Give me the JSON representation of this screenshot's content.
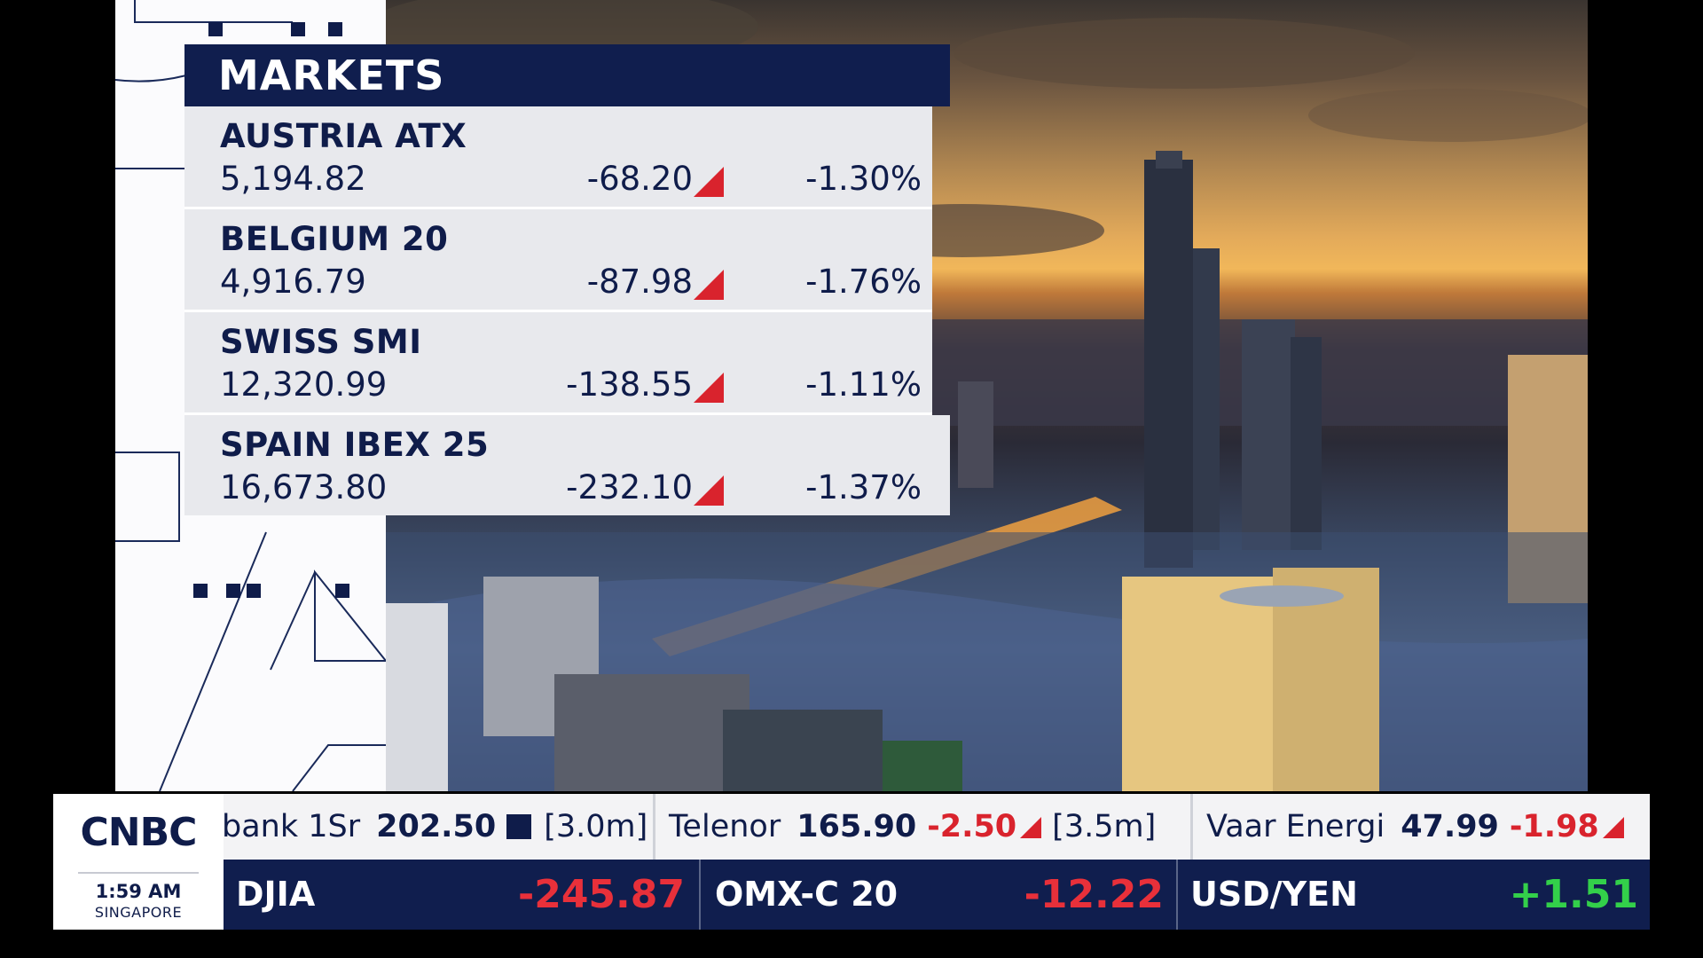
{
  "markets": {
    "title": "MARKETS",
    "rows": [
      {
        "name": "AUSTRIA ATX",
        "value": "5,194.82",
        "change": "-68.20",
        "percent": "-1.30%"
      },
      {
        "name": "BELGIUM 20",
        "value": "4,916.79",
        "change": "-87.98",
        "percent": "-1.76%"
      },
      {
        "name": "SWISS SMI",
        "value": "12,320.99",
        "change": "-138.55",
        "percent": "-1.11%"
      },
      {
        "name": "SPAIN IBEX 25",
        "value": "16,673.80",
        "change": "-232.10",
        "percent": "-1.37%"
      }
    ]
  },
  "logo": {
    "brand": "CNBC",
    "time": "1:59 AM",
    "city": "SINGAPORE"
  },
  "ticker_top": [
    {
      "name": "bank 1Sr",
      "price": "202.50",
      "volume": "[3.0m]"
    },
    {
      "name": "Telenor",
      "price": "165.90",
      "change": "-2.50",
      "volume": "[3.5m]"
    },
    {
      "name": "Vaar Energi",
      "price": "47.99",
      "change": "-1.98"
    }
  ],
  "ticker_bottom": [
    {
      "name": "DJIA",
      "value": "-245.87"
    },
    {
      "name": "OMX-C 20",
      "value": "-12.22"
    },
    {
      "name": "USD/YEN",
      "value": "+1.51"
    }
  ],
  "colors": {
    "navy": "#101e4e",
    "down": "#d9232d",
    "up": "#33d04a",
    "panel": "#e8e9ed"
  }
}
